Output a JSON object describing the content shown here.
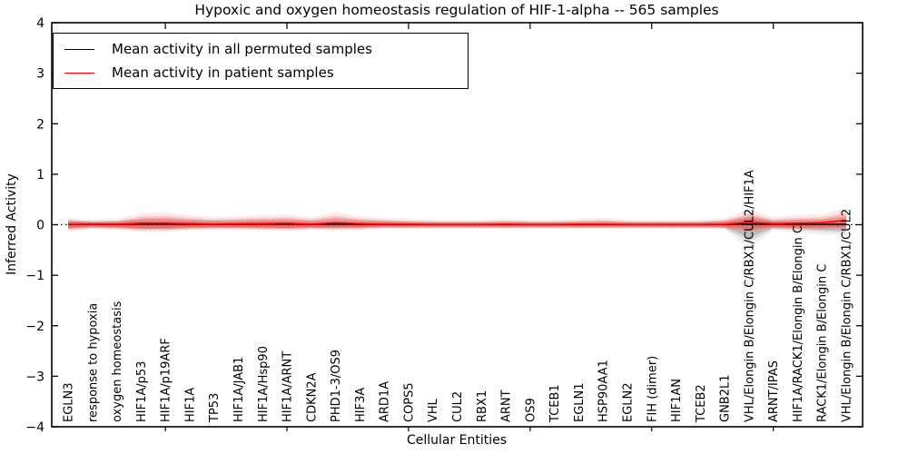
{
  "title": "Hypoxic and oxygen homeostasis regulation of HIF-1-alpha -- 565 samples",
  "axes": {
    "x_label": "Cellular Entities",
    "y_label": "Inferred Activity"
  },
  "legend": {
    "items": [
      {
        "label": "Mean activity in all permuted samples",
        "color": "#000000"
      },
      {
        "label": "Mean activity in patient samples",
        "color": "#ff0000"
      }
    ]
  },
  "colors": {
    "axis": "#000000",
    "zero_line": "#000000",
    "patient_band": "255,40,40",
    "permuted_band": "120,120,120",
    "background": "#ffffff"
  },
  "chart_data": {
    "type": "line",
    "title": "Hypoxic and oxygen homeostasis regulation of HIF-1-alpha -- 565 samples",
    "xlabel": "Cellular Entities",
    "ylabel": "Inferred Activity",
    "ylim": [
      -4,
      4
    ],
    "yticks": [
      4,
      3,
      2,
      1,
      0,
      -1,
      -2,
      -3,
      -4
    ],
    "grid": false,
    "legend_position": "upper left",
    "zero_line": {
      "style": "dotted",
      "color": "#000000",
      "y": 0
    },
    "categories": [
      "EGLN3",
      "response to hypoxia",
      "oxygen homeostasis",
      "HIF1A/p53",
      "HIF1A/p19ARF",
      "HIF1A",
      "TP53",
      "HIF1A/JAB1",
      "HIF1A/Hsp90",
      "HIF1A/ARNT",
      "CDKN2A",
      "PHD1-3/OS9",
      "HIF3A",
      "ARD1A",
      "COPS5",
      "VHL",
      "CUL2",
      "RBX1",
      "ARNT",
      "OS9",
      "TCEB1",
      "EGLN1",
      "HSP90AA1",
      "EGLN2",
      "FIH (dimer)",
      "HIF1AN",
      "TCEB2",
      "GNB2L1",
      "VHL/Elongin B/Elongin C/RBX1/CUL2/HIF1A",
      "ARNT/IPAS",
      "HIF1A/RACK1/Elongin B/Elongin C",
      "RACK1/Elongin B/Elongin C",
      "VHL/Elongin B/Elongin C/RBX1/CUL2"
    ],
    "series": [
      {
        "name": "Mean activity in all permuted samples",
        "color": "#000000",
        "values": [
          0.005,
          0.008,
          0.006,
          0.01,
          0.01,
          0.008,
          0.005,
          0.006,
          0.008,
          0.01,
          0.005,
          0.01,
          0.006,
          0.004,
          0.004,
          0.002,
          0.002,
          0.002,
          0.004,
          0.002,
          0.002,
          0.004,
          0.004,
          0.002,
          0.002,
          0.002,
          0.002,
          0.004,
          0.012,
          0.005,
          0.006,
          0.008,
          0.01
        ]
      },
      {
        "name": "Mean activity in patient samples",
        "color": "#ff0000",
        "values": [
          0.01,
          0.01,
          0.01,
          0.03,
          0.03,
          0.02,
          0.01,
          0.02,
          0.02,
          0.03,
          0.01,
          0.04,
          0.02,
          0.01,
          0.01,
          0.005,
          0.005,
          0.005,
          0.01,
          0.005,
          0.005,
          0.01,
          0.01,
          0.005,
          0.005,
          0.005,
          0.005,
          0.01,
          0.05,
          0.02,
          0.03,
          0.04,
          0.09
        ]
      }
    ],
    "bands": [
      {
        "name": "permuted samples envelope",
        "rgb": "120,120,120",
        "upper": [
          0.05,
          0.04,
          0.04,
          0.06,
          0.06,
          0.05,
          0.04,
          0.04,
          0.05,
          0.05,
          0.04,
          0.05,
          0.04,
          0.04,
          0.03,
          0.03,
          0.03,
          0.03,
          0.03,
          0.03,
          0.03,
          0.03,
          0.03,
          0.03,
          0.03,
          0.03,
          0.03,
          0.04,
          0.1,
          0.04,
          0.05,
          0.05,
          0.06
        ],
        "lower": [
          -0.05,
          -0.04,
          -0.05,
          -0.08,
          -0.08,
          -0.06,
          -0.05,
          -0.05,
          -0.06,
          -0.06,
          -0.05,
          -0.06,
          -0.05,
          -0.04,
          -0.04,
          -0.04,
          -0.04,
          -0.04,
          -0.04,
          -0.04,
          -0.04,
          -0.04,
          -0.04,
          -0.04,
          -0.04,
          -0.04,
          -0.04,
          -0.05,
          -0.25,
          -0.06,
          -0.08,
          -0.1,
          -0.12
        ]
      },
      {
        "name": "patient samples envelope",
        "rgb": "255,40,40",
        "upper": [
          0.07,
          0.05,
          0.06,
          0.12,
          0.13,
          0.1,
          0.08,
          0.09,
          0.1,
          0.11,
          0.08,
          0.13,
          0.09,
          0.07,
          0.06,
          0.05,
          0.05,
          0.05,
          0.06,
          0.05,
          0.05,
          0.06,
          0.07,
          0.05,
          0.05,
          0.05,
          0.05,
          0.07,
          0.16,
          0.08,
          0.1,
          0.11,
          0.17
        ],
        "lower": [
          -0.07,
          -0.04,
          -0.05,
          -0.06,
          -0.06,
          -0.05,
          -0.05,
          -0.05,
          -0.05,
          -0.06,
          -0.05,
          -0.05,
          -0.05,
          -0.04,
          -0.04,
          -0.04,
          -0.04,
          -0.04,
          -0.04,
          -0.04,
          -0.04,
          -0.04,
          -0.04,
          -0.04,
          -0.04,
          -0.04,
          -0.04,
          -0.04,
          -0.08,
          -0.04,
          -0.05,
          -0.05,
          -0.04
        ]
      }
    ]
  }
}
